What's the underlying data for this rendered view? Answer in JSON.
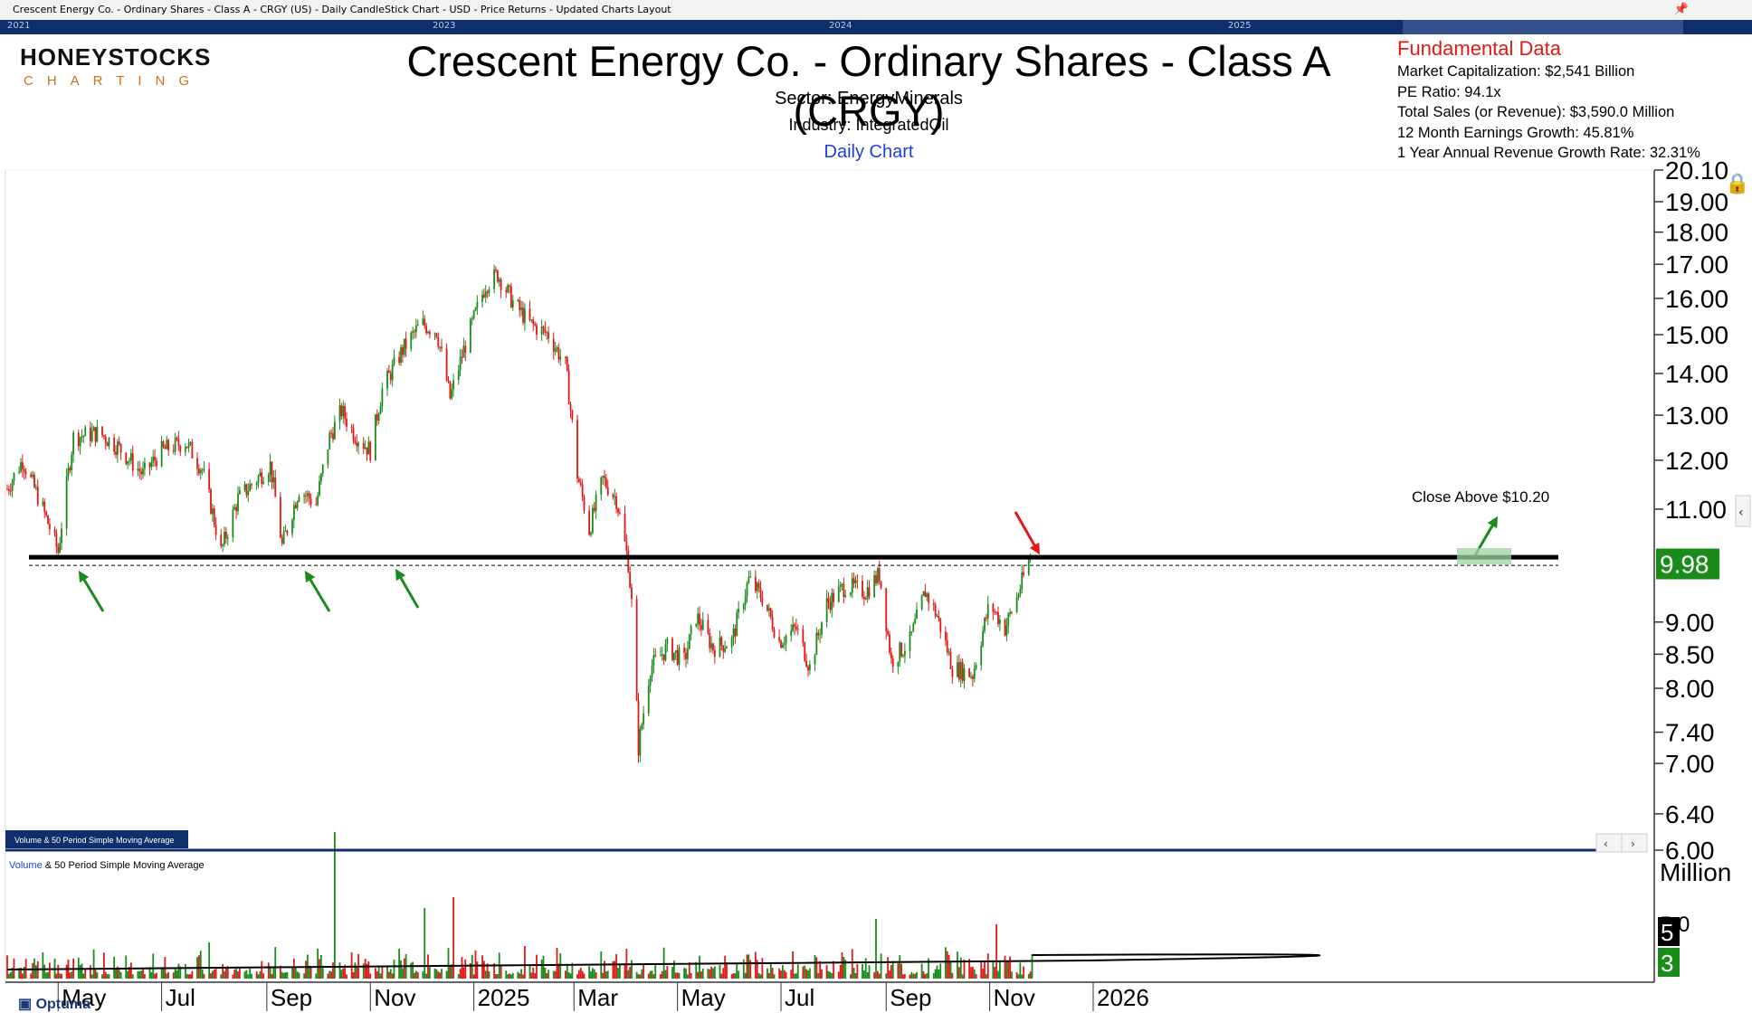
{
  "header": {
    "window_title": "Crescent Energy Co. - Ordinary Shares - Class A - CRGY (US) - Daily CandleStick Chart - USD - Price Returns - Updated Charts Layout",
    "nav_years": [
      "2021",
      "2023",
      "2024",
      "2025"
    ],
    "logo_main": "HONEYSTOCKS",
    "logo_sub": "CHARTING",
    "title": "Crescent Energy Co. - Ordinary Shares - Class A (CRGY)",
    "sector": "Sector: EnergyMinerals",
    "industry": "Industry: IntegratedOil",
    "chart_kind": "Daily Chart"
  },
  "fundamentals": {
    "heading": "Fundamental Data",
    "market_cap": "Market Capitalization: $2,541 Billion",
    "pe_ratio": "PE Ratio: 94.1x",
    "total_sales": "Total Sales (or Revenue): $3,590.0 Million",
    "earnings_growth": "12 Month Earnings Growth: 45.81%",
    "revenue_growth": "1 Year Annual Revenue Growth Rate: 32.31%"
  },
  "volume_panel": {
    "tab_label": "Volume & 50 Period Simple Moving Average",
    "legend_prefix": "Volume",
    "legend_suffix": " & 50 Period Simple Moving Average",
    "unit": "Million",
    "badge_volume": "5",
    "badge_average": "3",
    "tick_label": "5.0"
  },
  "footer": {
    "brand": "Optuma"
  },
  "colors": {
    "up": "#1a8c1a",
    "down": "#e01818",
    "accent_blue": "#1f3fd4",
    "nav_bg": "#0f2f6b",
    "last_price_bg": "#1a8c1a"
  },
  "chart_data": {
    "type": "candlestick",
    "frequency": "daily",
    "x_tick_labels": [
      "May",
      "Jul",
      "Sep",
      "Nov",
      "2025",
      "Mar",
      "May",
      "Jul",
      "Sep",
      "Nov",
      "2026"
    ],
    "y_tick_labels": [
      "20.10",
      "19.00",
      "18.00",
      "17.00",
      "16.00",
      "15.00",
      "14.00",
      "13.00",
      "12.00",
      "11.00",
      "9.00",
      "8.50",
      "8.00",
      "7.40",
      "7.00",
      "6.40",
      "6.00"
    ],
    "y_scale": "log",
    "ylim": [
      6.0,
      20.1
    ],
    "last_price": "9.98",
    "resistance_level": 10.1,
    "annotation": "Close Above $10.20",
    "price_path": [
      [
        "2024-04-01",
        11.4
      ],
      [
        "2024-04-10",
        12.0
      ],
      [
        "2024-04-22",
        11.0
      ],
      [
        "2024-05-01",
        10.2
      ],
      [
        "2024-05-10",
        12.5
      ],
      [
        "2024-05-25",
        12.6
      ],
      [
        "2024-06-05",
        12.3
      ],
      [
        "2024-06-20",
        11.7
      ],
      [
        "2024-07-01",
        12.2
      ],
      [
        "2024-07-15",
        12.4
      ],
      [
        "2024-07-25",
        11.8
      ],
      [
        "2024-08-05",
        10.2
      ],
      [
        "2024-08-15",
        11.2
      ],
      [
        "2024-08-26",
        11.6
      ],
      [
        "2024-09-03",
        11.9
      ],
      [
        "2024-09-10",
        10.3
      ],
      [
        "2024-09-20",
        11.4
      ],
      [
        "2024-09-30",
        11.1
      ],
      [
        "2024-10-08",
        12.5
      ],
      [
        "2024-10-15",
        13.1
      ],
      [
        "2024-10-22",
        12.6
      ],
      [
        "2024-11-01",
        12.2
      ],
      [
        "2024-11-08",
        13.6
      ],
      [
        "2024-11-20",
        14.6
      ],
      [
        "2024-12-01",
        15.3
      ],
      [
        "2024-12-10",
        15.1
      ],
      [
        "2024-12-18",
        13.4
      ],
      [
        "2024-12-26",
        14.6
      ],
      [
        "2025-01-08",
        16.4
      ],
      [
        "2025-01-15",
        16.7
      ],
      [
        "2025-01-24",
        15.9
      ],
      [
        "2025-02-03",
        15.3
      ],
      [
        "2025-02-14",
        15.0
      ],
      [
        "2025-02-24",
        14.2
      ],
      [
        "2025-03-03",
        11.7
      ],
      [
        "2025-03-10",
        10.6
      ],
      [
        "2025-03-18",
        11.6
      ],
      [
        "2025-03-26",
        11.2
      ],
      [
        "2025-04-02",
        10.0
      ],
      [
        "2025-04-04",
        9.3
      ],
      [
        "2025-04-08",
        7.2
      ],
      [
        "2025-04-15",
        8.3
      ],
      [
        "2025-04-25",
        8.6
      ],
      [
        "2025-05-05",
        8.4
      ],
      [
        "2025-05-12",
        9.1
      ],
      [
        "2025-05-22",
        8.6
      ],
      [
        "2025-06-02",
        8.7
      ],
      [
        "2025-06-12",
        9.7
      ],
      [
        "2025-06-20",
        9.4
      ],
      [
        "2025-06-30",
        8.7
      ],
      [
        "2025-07-10",
        8.9
      ],
      [
        "2025-07-18",
        8.3
      ],
      [
        "2025-07-28",
        9.3
      ],
      [
        "2025-08-08",
        9.6
      ],
      [
        "2025-08-20",
        9.5
      ],
      [
        "2025-08-28",
        9.8
      ],
      [
        "2025-09-04",
        8.4
      ],
      [
        "2025-09-15",
        8.7
      ],
      [
        "2025-09-24",
        9.5
      ],
      [
        "2025-10-01",
        9.1
      ],
      [
        "2025-10-10",
        8.3
      ],
      [
        "2025-10-22",
        8.2
      ],
      [
        "2025-11-01",
        9.3
      ],
      [
        "2025-11-10",
        8.9
      ],
      [
        "2025-11-17",
        9.4
      ],
      [
        "2025-11-26",
        10.2
      ]
    ],
    "volume_spikes_millions": [
      [
        "2024-10-11",
        5.4
      ],
      [
        "2024-12-03",
        2.6
      ],
      [
        "2024-12-20",
        3.0
      ],
      [
        "2025-08-26",
        2.2
      ],
      [
        "2025-11-05",
        2.0
      ]
    ],
    "volume_average_millions": 0.6
  }
}
